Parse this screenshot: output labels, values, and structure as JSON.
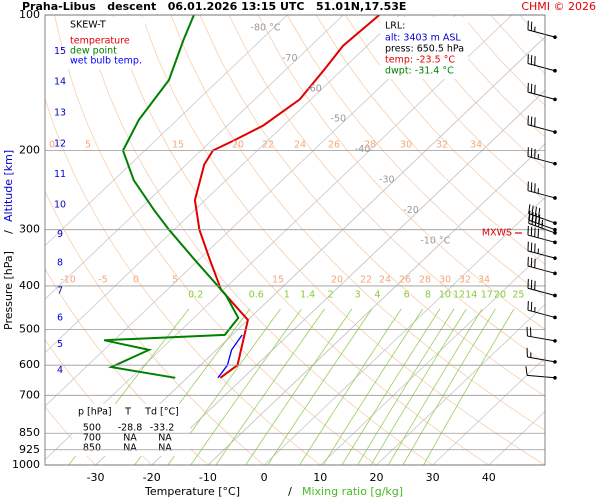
{
  "chart_data": {
    "type": "skewt",
    "title": "Praha-Libus   descent   06.01.2026 13:15 UTC   51.01N,17.53E",
    "credit": "CHMI © 2026",
    "legend_title": "SKEW-T",
    "x_label": "Temperature [°C]",
    "x_label_sep": "/",
    "x_label2": "Mixing ratio [g/kg]",
    "y_label": "Pressure [hPa]",
    "y_label_sep": "/",
    "y_label2": "Altitude [km]",
    "xlim": [
      -39,
      50
    ],
    "xticks": [
      -30,
      -20,
      -10,
      0,
      10,
      20,
      30,
      40
    ],
    "ylim": [
      1000,
      100
    ],
    "yticks": [
      100,
      200,
      300,
      400,
      500,
      600,
      700,
      850,
      925,
      1000
    ],
    "log_y": true,
    "altitude_ticks": [
      4,
      5,
      6,
      7,
      8,
      9,
      10,
      11,
      12,
      13,
      14,
      15
    ],
    "isotherms": [
      {
        "value": -80,
        "label": "-80 °C"
      },
      -70,
      -60,
      -50,
      -40,
      -30,
      -20,
      {
        "value": -10,
        "label": "-10 °C"
      }
    ],
    "mixing_ratios": [
      0.2,
      0.6,
      1,
      1.4,
      2,
      3,
      4,
      6,
      8,
      10,
      12,
      14,
      17,
      20,
      25
    ],
    "adiabat_labels_upper": [
      0,
      5,
      15,
      20,
      22,
      24,
      26,
      28,
      30,
      32,
      34
    ],
    "adiabat_labels_lower": [
      -10,
      -5,
      0,
      5,
      15,
      20,
      22,
      24,
      26,
      28,
      30,
      32,
      34
    ],
    "series": [
      {
        "name": "temperature",
        "color": "#e00000",
        "pressure": [
          640,
          600,
          476,
          408,
          350,
          300,
          258,
          215,
          200,
          190,
          176,
          154,
          132,
          117,
          100
        ],
        "values": [
          -24.1,
          -23.4,
          -30,
          -40.4,
          -48,
          -55.5,
          -61.8,
          -66.8,
          -67.9,
          -66,
          -63.6,
          -62,
          -63.2,
          -64.3,
          -63.6
        ]
      },
      {
        "name": "dew point",
        "color": "#008000",
        "pressure": [
          640,
          606,
          555,
          528,
          514,
          471,
          419,
          350,
          300,
          271,
          233,
          200,
          171,
          139.5,
          113.6,
          100
        ],
        "values": [
          -32.1,
          -45.5,
          -42,
          -51.8,
          -31.3,
          -32.1,
          -38.6,
          -50.7,
          -60.9,
          -67.3,
          -76.4,
          -83.9,
          -86.8,
          -88.9,
          -93.8,
          -96.6
        ]
      },
      {
        "name": "wet bulb temp.",
        "color": "#0000ff",
        "pressure": [
          640,
          600,
          555,
          514
        ],
        "values": [
          -24.5,
          -25.2,
          -27.3,
          -28.2
        ]
      }
    ],
    "wind": {
      "pressure": [
        112,
        133,
        154,
        182,
        214,
        255,
        290,
        300,
        305,
        320,
        347,
        375,
        420,
        470,
        530,
        590,
        640
      ],
      "direction": [
        285,
        285,
        285,
        285,
        285,
        285,
        290,
        290,
        290,
        285,
        285,
        285,
        285,
        285,
        280,
        280,
        275
      ],
      "speed": [
        25,
        30,
        30,
        30,
        35,
        35,
        40,
        45,
        45,
        40,
        35,
        30,
        30,
        25,
        20,
        15,
        10
      ]
    },
    "mxws_label": "MXWS",
    "lrl": {
      "title": "LRL:",
      "alt": "alt: 3403 m ASL",
      "press": "press: 650.5 hPa",
      "temp": "temp: -23.5 °C",
      "dwpt": "dwpt: -31.4 °C"
    },
    "table": {
      "header": [
        "p [hPa]",
        "T",
        "Td [°C]"
      ],
      "rows": [
        [
          "500",
          "-28.8",
          "-33.2"
        ],
        [
          "700",
          "NA",
          "NA"
        ],
        [
          "850",
          "NA",
          "NA"
        ]
      ]
    }
  }
}
